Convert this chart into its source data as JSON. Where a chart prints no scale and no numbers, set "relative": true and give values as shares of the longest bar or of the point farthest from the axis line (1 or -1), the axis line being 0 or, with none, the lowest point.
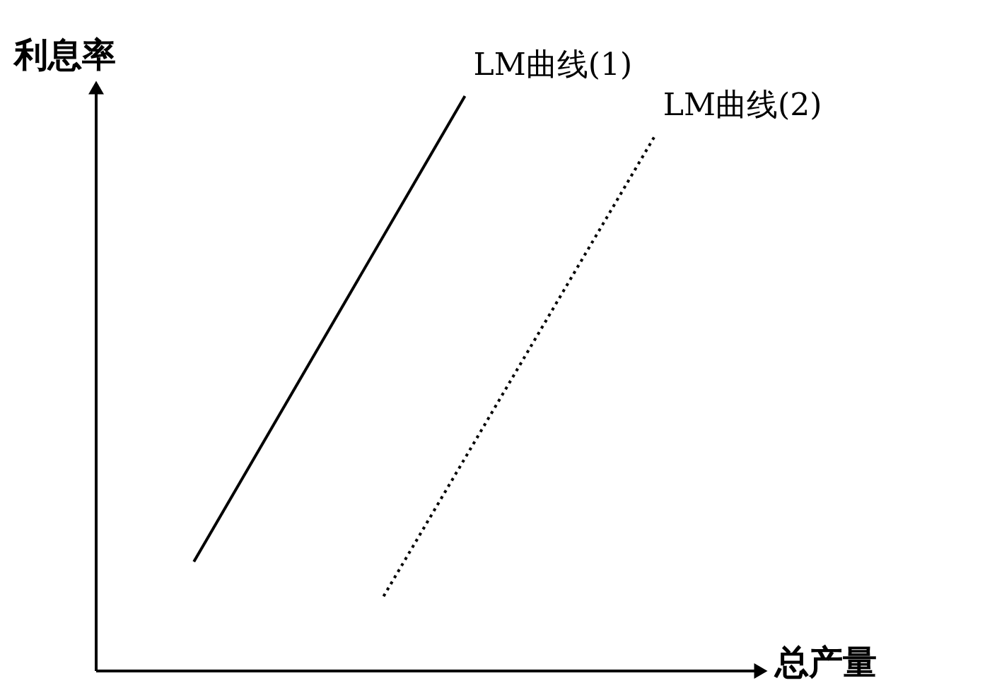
{
  "chart_data": {
    "type": "line",
    "relative": true,
    "xlabel": "总产量",
    "ylabel": "利息率",
    "categories": [
      null,
      null,
      null,
      null,
      null,
      null,
      null,
      null,
      null,
      null,
      null,
      null,
      null,
      null,
      null,
      null,
      null,
      null,
      null,
      null,
      null,
      null,
      null,
      null
    ],
    "series": [
      {
        "name": "LM曲线(1)",
        "color": "#000000",
        "line_style": "solid",
        "values": [
          null,
          null,
          null,
          0.19,
          null,
          null,
          null,
          null,
          null,
          null,
          null,
          null,
          null,
          1,
          null,
          null,
          null,
          null,
          null,
          null,
          null,
          null,
          null,
          null
        ]
      },
      {
        "name": "LM曲线(2)",
        "color": "#000000",
        "line_style": "dotted",
        "values": [
          null,
          null,
          null,
          null,
          null,
          null,
          null,
          null,
          null,
          null,
          0.13,
          null,
          null,
          null,
          null,
          null,
          null,
          null,
          null,
          null,
          0.93,
          null,
          null,
          null
        ]
      }
    ],
    "marker": "none"
  }
}
